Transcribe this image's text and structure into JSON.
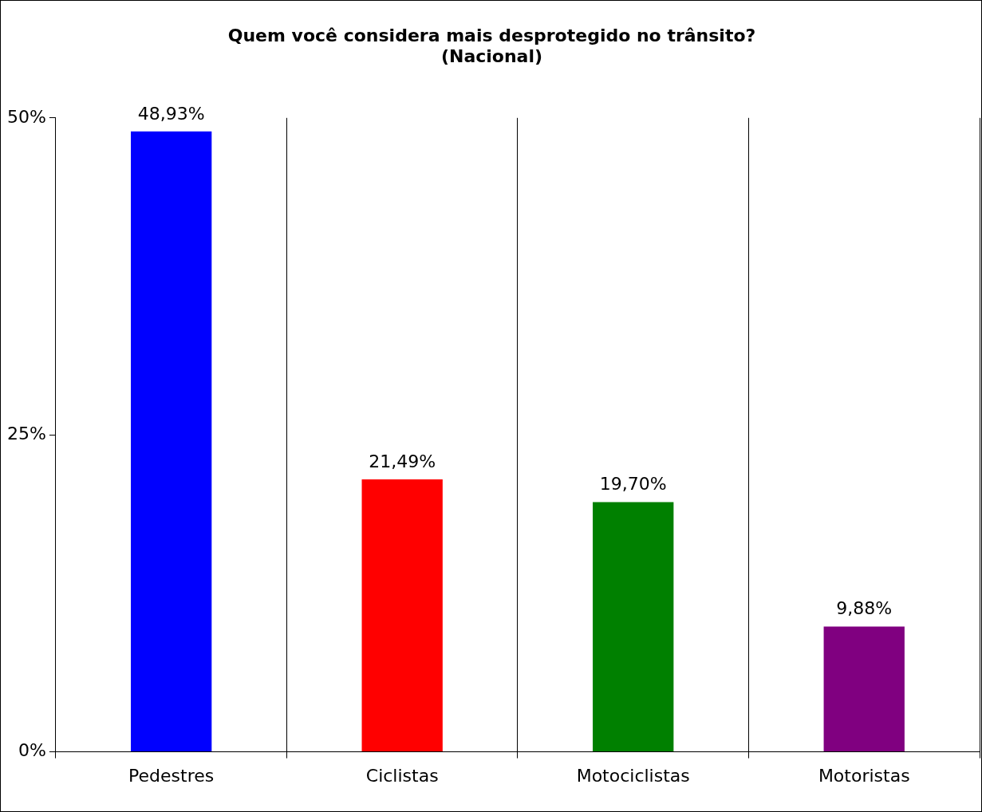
{
  "chart_data": {
    "type": "bar",
    "title": "Quem você considera mais desprotegido no trânsito?\n(Nacional)",
    "categories": [
      "Pedestres",
      "Ciclistas",
      "Motociclistas",
      "Motoristas"
    ],
    "values": [
      48.93,
      21.49,
      19.7,
      9.88
    ],
    "colors": [
      "#0000ff",
      "#ff0000",
      "#008000",
      "#800080"
    ],
    "value_labels": [
      "48,93%",
      "21,49%",
      "19,70%",
      "9,88%"
    ],
    "ylim": [
      0,
      50
    ],
    "yticks": [
      {
        "value": 0,
        "label": "0%"
      },
      {
        "value": 25,
        "label": "25%"
      },
      {
        "value": 50,
        "label": "50%"
      }
    ],
    "grid": "x",
    "legend": false
  }
}
